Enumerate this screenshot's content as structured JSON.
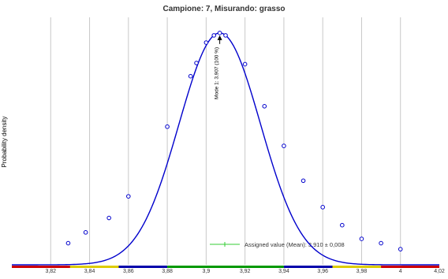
{
  "chart_data": {
    "type": "line",
    "title": "Campione: 7, Misurando: grasso",
    "ylabel": "Probability density",
    "xlabel": "",
    "xlim": [
      3.8,
      4.02
    ],
    "ylim": [
      0,
      1.03
    ],
    "x_ticks": [
      3.82,
      3.84,
      3.86,
      3.88,
      3.9,
      3.92,
      3.94,
      3.96,
      3.98,
      4,
      4.02
    ],
    "x_tick_labels": [
      "3,82",
      "3,84",
      "3,86",
      "3,88",
      "3,9",
      "3,92",
      "3,94",
      "3,96",
      "3,98",
      "4",
      "4,02"
    ],
    "grid": true,
    "series": [
      {
        "curve": "normal density",
        "color": "#0000cc",
        "mode": 3.907,
        "sd": 0.021,
        "points": [
          {
            "x": 3.829,
            "y": 0.09
          },
          {
            "x": 3.838,
            "y": 0.135
          },
          {
            "x": 3.85,
            "y": 0.195
          },
          {
            "x": 3.86,
            "y": 0.285
          },
          {
            "x": 3.88,
            "y": 0.575
          },
          {
            "x": 3.892,
            "y": 0.785
          },
          {
            "x": 3.895,
            "y": 0.84
          },
          {
            "x": 3.9,
            "y": 0.925
          },
          {
            "x": 3.904,
            "y": 0.955
          },
          {
            "x": 3.907,
            "y": 0.965
          },
          {
            "x": 3.91,
            "y": 0.955
          },
          {
            "x": 3.92,
            "y": 0.835
          },
          {
            "x": 3.93,
            "y": 0.66
          },
          {
            "x": 3.94,
            "y": 0.495
          },
          {
            "x": 3.95,
            "y": 0.35
          },
          {
            "x": 3.96,
            "y": 0.24
          },
          {
            "x": 3.97,
            "y": 0.165
          },
          {
            "x": 3.98,
            "y": 0.108
          },
          {
            "x": 3.99,
            "y": 0.09
          },
          {
            "x": 4.0,
            "y": 0.065
          }
        ]
      }
    ],
    "annotations": [
      {
        "text": "Mode 1: 3,907 (100 %)",
        "x": 3.907,
        "y": 0.965,
        "rotation": -90,
        "arrow": true
      }
    ],
    "legend": {
      "position": "bottom-right",
      "entries": [
        {
          "label": "Assigned value (Mean): 3,910 ± 0,008",
          "color": "#33cc33"
        }
      ]
    },
    "zone_bar": [
      {
        "from": 3.8,
        "to": 3.83,
        "color": "#cc0000"
      },
      {
        "from": 3.83,
        "to": 3.855,
        "color": "#ddcc00"
      },
      {
        "from": 3.855,
        "to": 3.88,
        "color": "#0000aa"
      },
      {
        "from": 3.88,
        "to": 3.94,
        "color": "#009900"
      },
      {
        "from": 3.94,
        "to": 3.965,
        "color": "#0000aa"
      },
      {
        "from": 3.965,
        "to": 3.99,
        "color": "#ddcc00"
      },
      {
        "from": 3.99,
        "to": 4.02,
        "color": "#cc0000"
      }
    ]
  }
}
